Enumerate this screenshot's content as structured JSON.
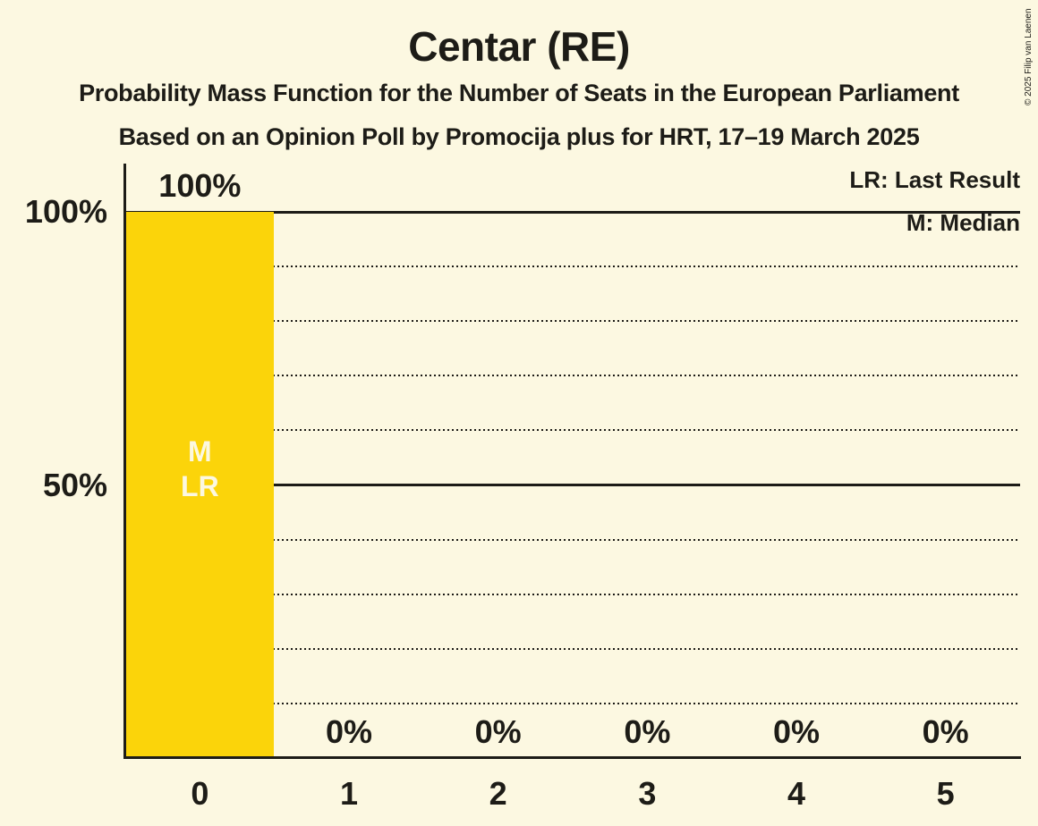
{
  "chart_data": {
    "type": "bar",
    "title": "Centar (RE)",
    "subtitle": "Probability Mass Function for the Number of Seats in the European Parliament",
    "source_line": "Based on an Opinion Poll by Promocija plus for HRT, 17–19 March 2025",
    "categories": [
      "0",
      "1",
      "2",
      "3",
      "4",
      "5"
    ],
    "values": [
      100,
      0,
      0,
      0,
      0,
      0
    ],
    "value_labels": [
      "100%",
      "0%",
      "0%",
      "0%",
      "0%",
      "0%"
    ],
    "ylim": [
      0,
      100
    ],
    "yticks": [
      {
        "value": 100,
        "label": "100%"
      },
      {
        "value": 50,
        "label": "50%"
      }
    ],
    "gridlines": {
      "dotted_step_pct": 10,
      "solid_at_pct": [
        50,
        100
      ],
      "grid_on": true
    },
    "legend_position": "top-right",
    "legend": [
      {
        "abbr": "LR",
        "label": "LR: Last Result"
      },
      {
        "abbr": "M",
        "label": "M: Median"
      }
    ],
    "bar_annotations": [
      {
        "category_index": 0,
        "lines": [
          "M",
          "LR"
        ]
      }
    ],
    "median_seats": 0,
    "last_result_seats": 0,
    "colors": {
      "bar": "#FBD40A",
      "background": "#FCF8E1",
      "text": "#1D1C17"
    }
  },
  "copyright": "© 2025 Filip van Laenen"
}
